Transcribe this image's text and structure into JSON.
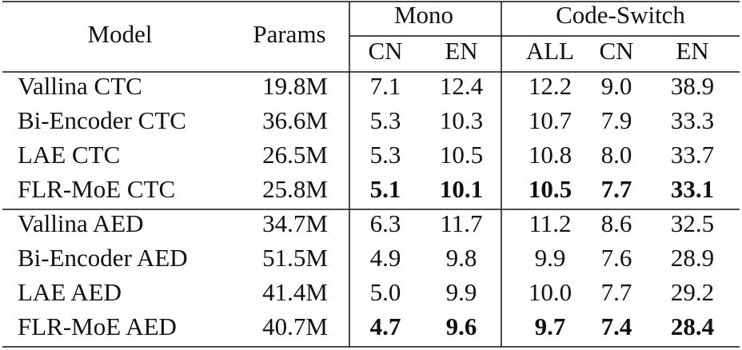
{
  "table": {
    "header": {
      "model": "Model",
      "params": "Params",
      "groups": [
        {
          "label": "Mono",
          "columns": [
            "CN",
            "EN"
          ]
        },
        {
          "label": "Code-Switch",
          "columns": [
            "ALL",
            "CN",
            "EN"
          ]
        }
      ]
    },
    "row_groups": [
      [
        [
          "Vallina CTC",
          "19.8M",
          "7.1",
          "12.4",
          "12.2",
          "9.0",
          "38.9"
        ],
        [
          "Bi-Encoder CTC",
          "36.6M",
          "5.3",
          "10.3",
          "10.7",
          "7.9",
          "33.3"
        ],
        [
          "LAE CTC",
          "26.5M",
          "5.3",
          "10.5",
          "10.8",
          "8.0",
          "33.7"
        ],
        [
          "FLR-MoE CTC",
          "25.8M",
          "5.1",
          "10.1",
          "10.5",
          "7.7",
          "33.1"
        ]
      ],
      [
        [
          "Vallina AED",
          "34.7M",
          "6.3",
          "11.7",
          "11.2",
          "8.6",
          "32.5"
        ],
        [
          "Bi-Encoder AED",
          "51.5M",
          "4.9",
          "9.8",
          "9.9",
          "7.6",
          "28.9"
        ],
        [
          "LAE AED",
          "41.4M",
          "5.0",
          "9.9",
          "10.0",
          "7.7",
          "29.2"
        ],
        [
          "FLR-MoE AED",
          "40.7M",
          "4.7",
          "9.6",
          "9.7",
          "7.4",
          "28.4"
        ]
      ]
    ]
  }
}
